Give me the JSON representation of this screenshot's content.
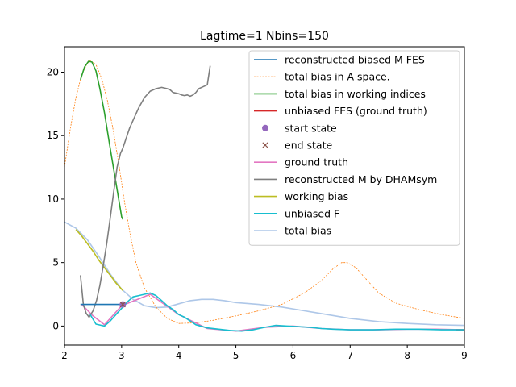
{
  "chart_data": {
    "type": "line",
    "title": "Lagtime=1 Nbins=150",
    "xlabel": "",
    "ylabel": "",
    "xlim": [
      2,
      9
    ],
    "ylim": [
      -1.5,
      22
    ],
    "xticks": [
      2,
      3,
      4,
      5,
      6,
      7,
      8,
      9
    ],
    "yticks": [
      0,
      5,
      10,
      15,
      20
    ],
    "grid": false,
    "legend_position": "upper right",
    "series": [
      {
        "name": "reconstructed biased M FES",
        "color": "#1f77b4",
        "style": "solid",
        "x": [
          2.28,
          2.45,
          2.65,
          2.85,
          3.0
        ],
        "y": [
          1.7,
          1.7,
          1.7,
          1.7,
          1.7
        ]
      },
      {
        "name": "total bias in A space.",
        "color": "#ff7f0e",
        "style": "dotted",
        "x": [
          2.0,
          2.1,
          2.2,
          2.3,
          2.4,
          2.45,
          2.55,
          2.65,
          2.75,
          2.85,
          2.95,
          3.05,
          3.15,
          3.25,
          3.4,
          3.6,
          3.8,
          4.0,
          4.3,
          4.6,
          5.0,
          5.4,
          5.8,
          6.2,
          6.5,
          6.7,
          6.85,
          6.95,
          7.1,
          7.3,
          7.5,
          7.8,
          8.2,
          8.6,
          9.0
        ],
        "y": [
          12.5,
          15.5,
          18.0,
          19.8,
          20.7,
          20.9,
          20.6,
          19.5,
          17.8,
          15.5,
          12.8,
          9.8,
          7.2,
          5.0,
          3.0,
          1.5,
          0.6,
          0.2,
          0.25,
          0.45,
          0.8,
          1.2,
          1.7,
          2.6,
          3.6,
          4.5,
          5.0,
          5.0,
          4.6,
          3.6,
          2.6,
          1.8,
          1.3,
          0.9,
          0.6
        ]
      },
      {
        "name": "total bias in working indices",
        "color": "#2ca02c",
        "style": "solid",
        "x": [
          2.28,
          2.35,
          2.42,
          2.48,
          2.55,
          2.62,
          2.7,
          2.8,
          2.9,
          3.0,
          3.02
        ],
        "y": [
          19.4,
          20.4,
          20.85,
          20.8,
          20.1,
          18.7,
          16.8,
          14.0,
          11.3,
          8.6,
          8.4
        ]
      },
      {
        "name": "unbiased FES (ground truth)",
        "color": "#d62728",
        "style": "solid",
        "x": [
          8.85,
          9.0
        ],
        "y": [
          -0.3,
          -0.3
        ]
      },
      {
        "name": "start state",
        "color": "#9467bd",
        "style": "marker-circle",
        "x": [
          3.02
        ],
        "y": [
          1.7
        ]
      },
      {
        "name": "end state",
        "color": "#8c564b",
        "style": "marker-x",
        "x": [
          3.02
        ],
        "y": [
          1.7
        ]
      },
      {
        "name": "ground truth",
        "color": "#e377c2",
        "style": "solid",
        "x": [
          2.3,
          2.5,
          2.7,
          3.0,
          3.5,
          4.0,
          4.5,
          5.0,
          5.5,
          6.0,
          6.5,
          7.0,
          7.5,
          8.0,
          8.5,
          9.0
        ],
        "y": [
          1.7,
          0.8,
          0.1,
          1.6,
          2.5,
          0.9,
          -0.2,
          -0.4,
          -0.1,
          0.0,
          -0.2,
          -0.3,
          -0.3,
          -0.25,
          -0.25,
          -0.3
        ]
      },
      {
        "name": "reconstructed M by DHAMsym",
        "color": "#7f7f7f",
        "style": "solid",
        "x": [
          2.28,
          2.33,
          2.38,
          2.43,
          2.5,
          2.56,
          2.62,
          2.68,
          2.74,
          2.8,
          2.86,
          2.92,
          2.98,
          3.02,
          3.08,
          3.14,
          3.2,
          3.3,
          3.4,
          3.5,
          3.6,
          3.7,
          3.8,
          3.85,
          3.9,
          4.0,
          4.05,
          4.1,
          4.15,
          4.2,
          4.25,
          4.3,
          4.35,
          4.45,
          4.5,
          4.55
        ],
        "y": [
          4.0,
          1.7,
          1.0,
          0.7,
          1.2,
          2.0,
          3.2,
          4.8,
          6.5,
          8.5,
          10.5,
          12.5,
          13.6,
          14.0,
          14.8,
          15.6,
          16.2,
          17.2,
          18.0,
          18.5,
          18.7,
          18.8,
          18.7,
          18.6,
          18.4,
          18.3,
          18.2,
          18.15,
          18.2,
          18.1,
          18.2,
          18.4,
          18.7,
          18.9,
          19.0,
          20.5
        ]
      },
      {
        "name": "working bias",
        "color": "#bcbd22",
        "style": "solid",
        "x": [
          2.2,
          2.3,
          2.4,
          2.5,
          2.6,
          2.7,
          2.8,
          2.9,
          3.0,
          3.02
        ],
        "y": [
          7.6,
          7.1,
          6.5,
          5.9,
          5.2,
          4.6,
          4.0,
          3.4,
          2.9,
          2.8
        ]
      },
      {
        "name": "unbiased F",
        "color": "#17becf",
        "style": "solid",
        "x": [
          2.45,
          2.55,
          2.65,
          2.7,
          2.8,
          2.9,
          3.0,
          3.1,
          3.2,
          3.3,
          3.4,
          3.5,
          3.6,
          3.7,
          3.8,
          3.9,
          4.0,
          4.1,
          4.2,
          4.3,
          4.5,
          4.7,
          4.9,
          5.1,
          5.3,
          5.5,
          5.7,
          5.9,
          6.1,
          6.3,
          6.5,
          6.7,
          7.0,
          7.4,
          7.8,
          8.2,
          8.6,
          9.0
        ],
        "y": [
          0.9,
          0.15,
          0.05,
          0.0,
          0.4,
          0.9,
          1.4,
          1.9,
          2.3,
          2.4,
          2.5,
          2.6,
          2.4,
          2.0,
          1.6,
          1.3,
          0.9,
          0.7,
          0.4,
          0.1,
          -0.15,
          -0.25,
          -0.35,
          -0.4,
          -0.3,
          -0.1,
          0.05,
          0.0,
          -0.05,
          -0.1,
          -0.2,
          -0.25,
          -0.3,
          -0.3,
          -0.25,
          -0.25,
          -0.3,
          -0.3
        ]
      },
      {
        "name": "total bias",
        "color": "#aec7e8",
        "style": "solid",
        "x": [
          2.0,
          2.2,
          2.4,
          2.6,
          2.8,
          3.0,
          3.2,
          3.4,
          3.6,
          3.8,
          4.0,
          4.2,
          4.4,
          4.6,
          4.8,
          5.0,
          5.4,
          5.8,
          6.2,
          6.6,
          7.0,
          7.5,
          8.0,
          8.5,
          9.0
        ],
        "y": [
          8.2,
          7.7,
          6.8,
          5.5,
          4.1,
          2.9,
          2.1,
          1.6,
          1.45,
          1.5,
          1.75,
          2.0,
          2.1,
          2.1,
          2.0,
          1.85,
          1.7,
          1.5,
          1.2,
          0.9,
          0.6,
          0.35,
          0.2,
          0.1,
          0.05
        ]
      }
    ]
  }
}
